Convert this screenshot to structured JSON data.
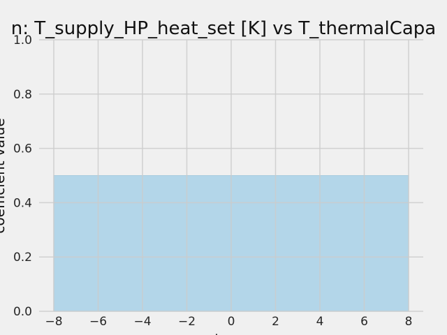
{
  "chart_data": {
    "type": "area",
    "title": "n: T_supply_HP_heat_set [K] vs T_thermalCapa",
    "xlabel": "l",
    "ylabel": "coefficient value",
    "xlim": [
      -8,
      8
    ],
    "ylim": [
      0,
      1.0
    ],
    "x_ticks": [
      "−8",
      "−6",
      "−4",
      "−2",
      "0",
      "2",
      "4",
      "6",
      "8"
    ],
    "x_tick_values": [
      -8,
      -6,
      -4,
      -2,
      0,
      2,
      4,
      6,
      8
    ],
    "y_ticks": [
      "0.0",
      "0.2",
      "0.4",
      "0.6",
      "0.8",
      "1.0"
    ],
    "y_tick_values": [
      0.0,
      0.2,
      0.4,
      0.6,
      0.8,
      1.0
    ],
    "grid": true,
    "series": [
      {
        "x": [
          -8,
          8
        ],
        "y": [
          0.5,
          0.5
        ]
      }
    ],
    "colors": {
      "background": "#f0f0f0",
      "grid": "#cbcbcb",
      "fill": "#b3d6e9",
      "fill_edge": "#a9ccdf",
      "text": "#262626"
    }
  }
}
